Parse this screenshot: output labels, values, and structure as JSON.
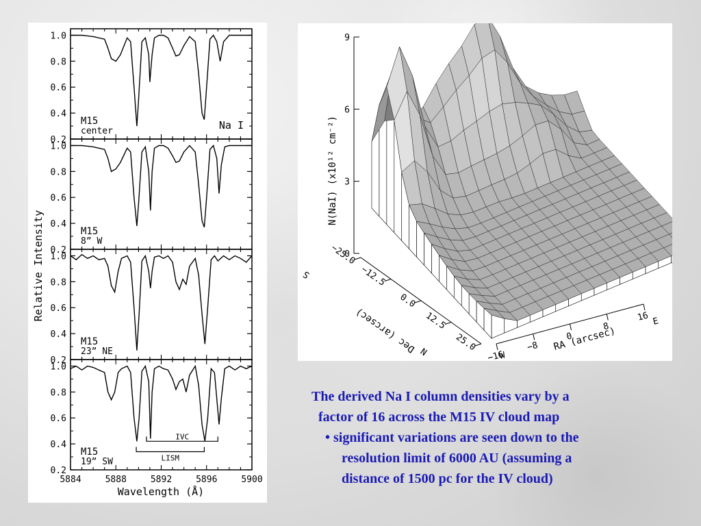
{
  "caption": {
    "line1": "The derived Na I column densities vary by a",
    "line2": "factor of 16 across the M15 IV cloud map",
    "bullet": "•",
    "line3": "significant variations are seen down to the",
    "line4": "resolution limit of 6000 AU (assuming a",
    "line5": "distance of 1500 pc for the IV cloud)"
  },
  "chart_data": [
    {
      "type": "line",
      "ylabel": "Relative Intensity",
      "xlabel": "Wavelength (Å)",
      "xlim": [
        5884,
        5900
      ],
      "ylim": [
        0.2,
        1.05
      ],
      "xticks": [
        "5884",
        "5888",
        "5892",
        "5896",
        "5900"
      ],
      "yticks": [
        "0.2",
        "0.4",
        "0.6",
        "0.8",
        "1.0"
      ],
      "panels": [
        {
          "label1": "M15",
          "label2": "center",
          "corner_label": "Na I",
          "series": [
            {
              "x": [
                5884,
                5885,
                5886,
                5887,
                5887.3,
                5887.6,
                5888,
                5888.4,
                5889,
                5889.3,
                5889.6,
                5889.85,
                5890,
                5890.3,
                5890.6,
                5890.9,
                5891,
                5891.2,
                5891.4,
                5891.8,
                5892.2,
                5892.6,
                5893,
                5893.3,
                5893.6,
                5894,
                5894.5,
                5895,
                5895.3,
                5895.6,
                5895.8,
                5896,
                5896.3,
                5896.6,
                5896.9,
                5897.2,
                5897.5,
                5898,
                5899,
                5900
              ],
              "y": [
                1.0,
                1.0,
                0.99,
                0.97,
                0.9,
                0.82,
                0.8,
                0.85,
                0.98,
                0.95,
                0.6,
                0.3,
                0.5,
                0.95,
                0.98,
                0.85,
                0.64,
                0.85,
                0.98,
                1.0,
                1.0,
                0.98,
                0.9,
                0.84,
                0.85,
                0.92,
                0.99,
                0.95,
                0.7,
                0.4,
                0.35,
                0.6,
                0.97,
                1.0,
                0.95,
                0.8,
                0.95,
                1.0,
                1.0,
                1.0
              ]
            }
          ]
        },
        {
          "label1": "M15",
          "label2": "8” W",
          "corner_label": "",
          "series": [
            {
              "x": [
                5884,
                5885,
                5886,
                5887,
                5887.3,
                5887.6,
                5888,
                5888.4,
                5889,
                5889.3,
                5889.6,
                5889.85,
                5890,
                5890.3,
                5890.6,
                5890.9,
                5891.05,
                5891.2,
                5891.4,
                5891.8,
                5892.2,
                5892.6,
                5893,
                5893.3,
                5893.6,
                5894,
                5894.5,
                5895,
                5895.3,
                5895.6,
                5895.8,
                5896,
                5896.3,
                5896.6,
                5896.9,
                5897.1,
                5897.3,
                5897.6,
                5898,
                5899,
                5900
              ],
              "y": [
                1.0,
                1.0,
                0.99,
                0.97,
                0.9,
                0.8,
                0.82,
                0.87,
                0.98,
                0.95,
                0.6,
                0.38,
                0.55,
                0.95,
                0.99,
                0.8,
                0.5,
                0.8,
                0.98,
                1.0,
                1.0,
                0.98,
                0.92,
                0.87,
                0.88,
                0.95,
                1.0,
                0.95,
                0.7,
                0.42,
                0.37,
                0.6,
                0.97,
                1.0,
                0.9,
                0.63,
                0.85,
                0.99,
                1.0,
                1.0,
                1.0
              ]
            }
          ]
        },
        {
          "label1": "M15",
          "label2": "23” NE",
          "corner_label": "",
          "series": [
            {
              "x": [
                5884,
                5884.5,
                5885,
                5885.5,
                5886,
                5886.5,
                5887,
                5887.3,
                5887.6,
                5887.9,
                5888.2,
                5888.5,
                5889,
                5889.3,
                5889.6,
                5889.85,
                5890.05,
                5890.3,
                5890.6,
                5890.9,
                5891.05,
                5891.2,
                5891.4,
                5891.8,
                5892.2,
                5892.6,
                5893,
                5893.3,
                5893.6,
                5893.9,
                5894.2,
                5894.5,
                5895,
                5895.3,
                5895.6,
                5895.85,
                5896.1,
                5896.4,
                5896.7,
                5897,
                5897.5,
                5898,
                5898.5,
                5899,
                5899.5,
                5900
              ],
              "y": [
                1.0,
                0.97,
                1.01,
                0.98,
                1.0,
                0.97,
                0.98,
                0.92,
                0.77,
                0.72,
                0.88,
                0.98,
                1.0,
                0.95,
                0.6,
                0.27,
                0.55,
                0.96,
                1.0,
                0.88,
                0.75,
                0.88,
                0.99,
                1.0,
                0.98,
                1.0,
                0.95,
                0.8,
                0.74,
                0.82,
                0.78,
                0.92,
                0.98,
                0.85,
                0.55,
                0.32,
                0.6,
                0.97,
                1.0,
                0.96,
                1.0,
                0.97,
                1.0,
                0.98,
                0.95,
                1.0
              ]
            }
          ]
        },
        {
          "label1": "M15",
          "label2": "19” SW",
          "corner_label": "",
          "series": [
            {
              "x": [
                5884,
                5884.5,
                5885,
                5885.5,
                5886,
                5886.5,
                5887,
                5887.3,
                5887.6,
                5887.9,
                5888.2,
                5888.5,
                5889,
                5889.3,
                5889.6,
                5889.85,
                5890.05,
                5890.3,
                5890.6,
                5890.9,
                5891.05,
                5891.2,
                5891.4,
                5891.8,
                5892.2,
                5892.6,
                5893,
                5893.3,
                5893.6,
                5893.9,
                5894.2,
                5894.5,
                5895,
                5895.3,
                5895.6,
                5895.85,
                5896.1,
                5896.4,
                5896.7,
                5896.95,
                5897.1,
                5897.3,
                5897.6,
                5898,
                5898.5,
                5899,
                5899.5,
                5900
              ],
              "y": [
                0.98,
                1.0,
                0.97,
                1.0,
                0.99,
                0.97,
                0.95,
                0.8,
                0.74,
                0.8,
                0.95,
                0.98,
                1.0,
                0.95,
                0.6,
                0.42,
                0.6,
                0.96,
                1.0,
                0.88,
                0.44,
                0.8,
                0.98,
                1.0,
                0.98,
                0.97,
                0.9,
                0.82,
                0.88,
                0.9,
                0.8,
                0.93,
                1.0,
                0.85,
                0.55,
                0.42,
                0.6,
                0.98,
                0.95,
                0.7,
                0.55,
                0.75,
                0.98,
                1.0,
                0.97,
                1.0,
                0.98,
                1.0
              ]
            }
          ],
          "annotations": [
            {
              "label": "IVC",
              "x_range": [
                5890.7,
                5897.0
              ]
            },
            {
              "label": "LISM",
              "x_range": [
                5889.8,
                5895.8
              ]
            }
          ]
        }
      ]
    },
    {
      "type": "surface3d",
      "zlabel": "N(NaI) (x10¹² cm⁻²)",
      "zticks": [
        "0",
        "3",
        "6",
        "9"
      ],
      "zlim": [
        0,
        9
      ],
      "ylabel": "Dec (arcsec)",
      "yticks": [
        "−25.0",
        "−12.5",
        "0.0",
        "12.5",
        "25.0"
      ],
      "xlabel": "RA (arcsec)",
      "xticks": [
        "−16",
        "−8",
        "0",
        "8",
        "16"
      ],
      "compass": {
        "S": "S",
        "N": "N",
        "W": "W",
        "E": "E"
      }
    }
  ]
}
